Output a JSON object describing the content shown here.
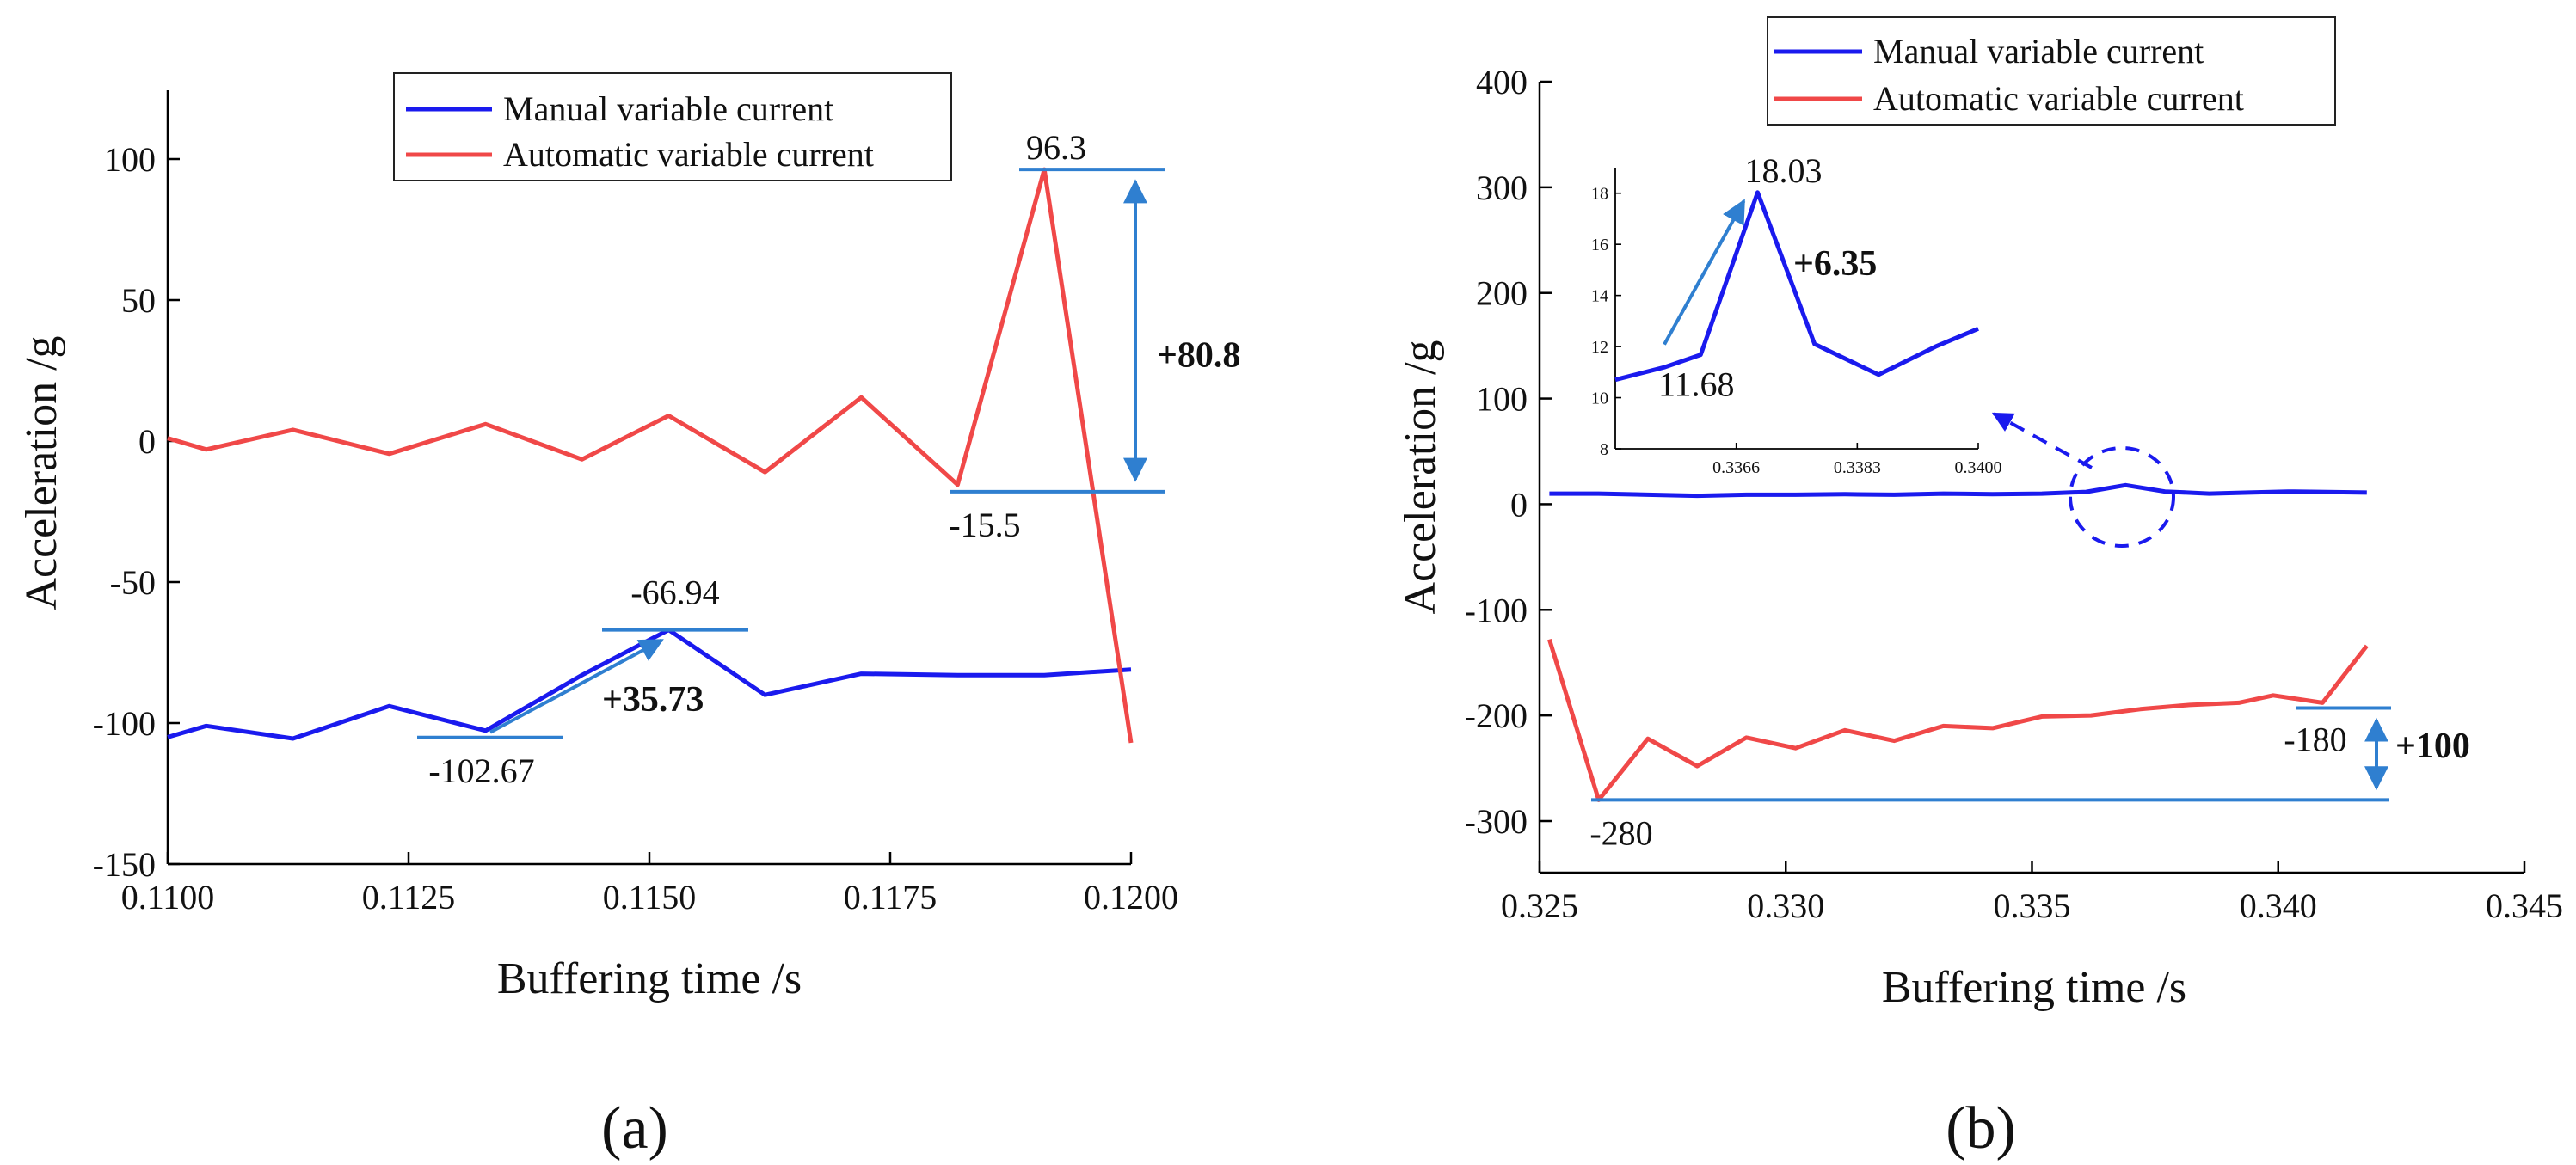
{
  "colors": {
    "manual": "#1a1aee",
    "automatic": "#f04848",
    "annotation": "#2f7fd0",
    "axis": "#000000"
  },
  "chart_data": [
    {
      "type": "line",
      "panel_label": "(a)",
      "xlabel": "Buffering time /s",
      "ylabel": "Acceleration /g",
      "xlim": [
        0.11,
        0.12
      ],
      "ylim": [
        -150,
        125
      ],
      "xticks": [
        0.11,
        0.1125,
        0.115,
        0.1175,
        0.12
      ],
      "xtick_labels": [
        "0.1100",
        "0.1125",
        "0.1150",
        "0.1175",
        "0.1200"
      ],
      "yticks": [
        -150,
        -100,
        -50,
        0,
        50,
        100
      ],
      "ytick_labels": [
        "-150",
        "-100",
        "-50",
        "0",
        "50",
        "100"
      ],
      "legend": {
        "position": "top-right",
        "entries": [
          "Manual variable current",
          "Automatic variable current"
        ]
      },
      "series": [
        {
          "name": "Manual variable current",
          "x": [
            0.11,
            0.1104,
            0.1113,
            0.1123,
            0.1133,
            0.1143,
            0.1152,
            0.1162,
            0.1172,
            0.1182,
            0.1191,
            0.12
          ],
          "values": [
            -105,
            -101,
            -105.5,
            -94,
            -102.67,
            -83,
            -66.94,
            -90,
            -82.5,
            -83,
            -83,
            -81
          ]
        },
        {
          "name": "Automatic variable current",
          "x": [
            0.11,
            0.1104,
            0.1113,
            0.1123,
            0.1133,
            0.1143,
            0.1152,
            0.1162,
            0.1172,
            0.1182,
            0.1191,
            0.12
          ],
          "values": [
            1,
            -3,
            4,
            -4.5,
            6,
            -6.5,
            9,
            -11,
            15.5,
            -15.5,
            96.3,
            -107
          ]
        }
      ],
      "annotations": {
        "auto_high": "96.3",
        "auto_low": "-15.5",
        "auto_diff": "+80.8",
        "manual_high": "-66.94",
        "manual_low": "-102.67",
        "manual_diff": "+35.73"
      }
    },
    {
      "type": "line",
      "panel_label": "(b)",
      "xlabel": "Buffering time /s",
      "ylabel": "Acceleration /g",
      "xlim": [
        0.325,
        0.345
      ],
      "ylim": [
        -350,
        400
      ],
      "xticks": [
        0.325,
        0.33,
        0.335,
        0.34,
        0.345
      ],
      "xtick_labels": [
        "0.325",
        "0.330",
        "0.335",
        "0.340",
        "0.345"
      ],
      "yticks": [
        -300,
        -200,
        -100,
        0,
        100,
        200,
        300,
        400
      ],
      "ytick_labels": [
        "-300",
        "-200",
        "-100",
        "0",
        "100",
        "200",
        "300",
        "400"
      ],
      "legend": {
        "position": "top-right",
        "entries": [
          "Manual variable current",
          "Automatic variable current"
        ]
      },
      "series": [
        {
          "name": "Manual variable current",
          "x": [
            0.3252,
            0.3262,
            0.3272,
            0.3282,
            0.3292,
            0.3302,
            0.3312,
            0.3322,
            0.3332,
            0.3342,
            0.3352,
            0.3361,
            0.3369,
            0.3377,
            0.3386,
            0.3394,
            0.3402,
            0.341,
            0.3418
          ],
          "values": [
            10,
            10,
            9,
            8,
            9,
            9,
            9.5,
            9,
            10,
            9.5,
            10,
            11.68,
            18.03,
            12,
            10,
            11,
            12,
            11.5,
            11
          ]
        },
        {
          "name": "Automatic variable current",
          "x": [
            0.3252,
            0.3262,
            0.3272,
            0.3282,
            0.3292,
            0.3302,
            0.3312,
            0.3322,
            0.3332,
            0.3342,
            0.3352,
            0.3362,
            0.3372,
            0.3382,
            0.3392,
            0.3399,
            0.3409,
            0.3418
          ],
          "values": [
            -128,
            -280,
            -222,
            -248,
            -221,
            -231,
            -214,
            -224,
            -210,
            -212,
            -201,
            -200,
            -194,
            -190,
            -188,
            -181,
            -188,
            -134
          ]
        }
      ],
      "annotations": {
        "auto_low": "-280",
        "auto_high": "-180",
        "auto_diff": "+100",
        "inset_peak": "18.03",
        "inset_base": "11.68",
        "inset_diff": "+6.35"
      },
      "inset": {
        "xlim": [
          0.3349,
          0.34
        ],
        "ylim": [
          8,
          19
        ],
        "xticks": [
          0.3366,
          0.3383,
          0.34
        ],
        "xtick_labels": [
          "0.3366",
          "0.3383",
          "0.3400"
        ],
        "yticks": [
          8,
          10,
          12,
          14,
          16,
          18
        ],
        "ytick_labels": [
          "8",
          "10",
          "12",
          "14",
          "16",
          "18"
        ],
        "x": [
          0.3349,
          0.3356,
          0.3361,
          0.3369,
          0.3377,
          0.3386,
          0.3394,
          0.34
        ],
        "values": [
          10.7,
          11.2,
          11.68,
          18.03,
          12.1,
          10.9,
          12.0,
          12.7
        ]
      }
    }
  ]
}
